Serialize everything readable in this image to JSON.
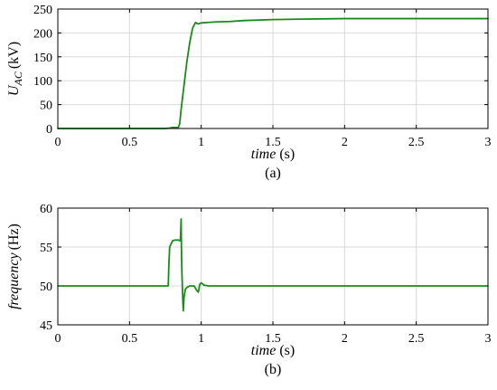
{
  "colors": {
    "line": "#1a8a1a"
  },
  "chart_data": [
    {
      "type": "line",
      "caption": "(a)",
      "xlabel": "time (s)",
      "ylabel_main": "U",
      "ylabel_sub": "AC",
      "ylabel_unit": "(kV)",
      "xlim": [
        0,
        3
      ],
      "ylim": [
        0,
        250
      ],
      "xticks": [
        0,
        0.5,
        1,
        1.5,
        2,
        2.5,
        3
      ],
      "xtick_labels": [
        "0",
        "0.5",
        "1",
        "1.5",
        "2",
        "2.5",
        "3"
      ],
      "yticks": [
        0,
        50,
        100,
        150,
        200,
        250
      ],
      "ytick_labels": [
        "0",
        "50",
        "100",
        "150",
        "200",
        "250"
      ],
      "grid": true,
      "series": [
        {
          "x": [
            0,
            0.5,
            0.75,
            0.78,
            0.8,
            0.82,
            0.84,
            0.85,
            0.86,
            0.88,
            0.9,
            0.92,
            0.94,
            0.96,
            0.97,
            0.98,
            1.0,
            1.05,
            1.1,
            1.2,
            1.3,
            1.5,
            1.7,
            2.0,
            2.5,
            3.0
          ],
          "y": [
            0,
            0,
            0,
            1,
            2,
            2,
            2,
            10,
            40,
            90,
            140,
            180,
            210,
            222,
            220,
            219,
            221,
            222,
            223,
            224,
            226,
            228,
            229,
            230,
            230,
            230
          ]
        }
      ]
    },
    {
      "type": "line",
      "caption": "(b)",
      "xlabel": "time (s)",
      "ylabel_main": "frequency",
      "ylabel_unit": "(Hz)",
      "xlim": [
        0,
        3
      ],
      "ylim": [
        45,
        60
      ],
      "xticks": [
        0,
        0.5,
        1,
        1.5,
        2,
        2.5,
        3
      ],
      "xtick_labels": [
        "0",
        "0.5",
        "1",
        "1.5",
        "2",
        "2.5",
        "3"
      ],
      "yticks": [
        45,
        50,
        55,
        60
      ],
      "ytick_labels": [
        "45",
        "50",
        "55",
        "60"
      ],
      "grid": true,
      "series": [
        {
          "x": [
            0,
            0.77,
            0.775,
            0.78,
            0.8,
            0.82,
            0.84,
            0.855,
            0.86,
            0.862,
            0.865,
            0.87,
            0.875,
            0.88,
            0.89,
            0.9,
            0.92,
            0.95,
            0.97,
            0.98,
            0.99,
            1.0,
            1.02,
            1.05,
            1.2,
            3.0
          ],
          "y": [
            50,
            50,
            53,
            55,
            55.8,
            55.9,
            55.9,
            55.8,
            58.6,
            55,
            52,
            49,
            46.8,
            48.5,
            49.6,
            49.8,
            50.0,
            50.0,
            49.4,
            49.2,
            50.2,
            50.4,
            50.1,
            50.0,
            50.0,
            50.0
          ]
        }
      ]
    }
  ]
}
